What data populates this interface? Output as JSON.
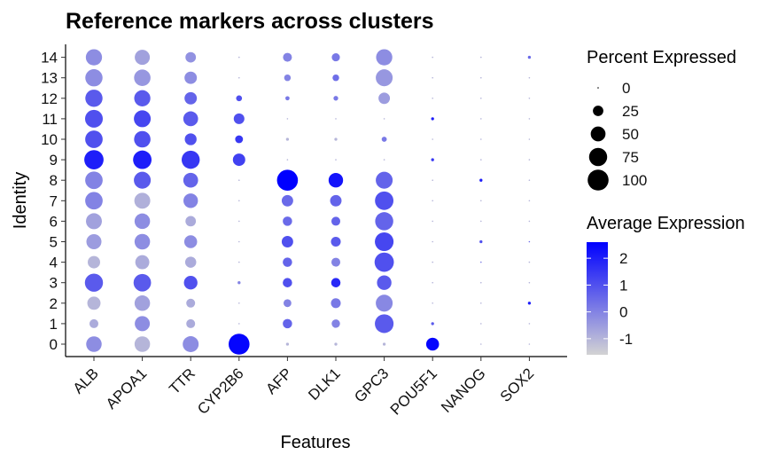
{
  "chart_data": {
    "type": "dotplot",
    "title": "Reference markers across clusters",
    "xlabel": "Features",
    "ylabel": "Identity",
    "features": [
      "ALB",
      "APOA1",
      "TTR",
      "CYP2B6",
      "AFP",
      "DLK1",
      "GPC3",
      "POU5F1",
      "NANOG",
      "SOX2"
    ],
    "identities": [
      "0",
      "1",
      "2",
      "3",
      "4",
      "5",
      "6",
      "7",
      "8",
      "9",
      "10",
      "11",
      "12",
      "13",
      "14"
    ],
    "size_legend": {
      "title": "Percent Expressed",
      "values": [
        0,
        25,
        50,
        75,
        100
      ],
      "labels": [
        "0",
        "25",
        "50",
        "75",
        "100"
      ]
    },
    "color_legend": {
      "title": "Average Expression",
      "ticks": [
        2,
        1,
        0,
        -1
      ],
      "labels": [
        "2",
        "1",
        "0",
        "-1"
      ],
      "range": [
        -1.6,
        2.6
      ],
      "low_color": "#d3d3d3",
      "high_color": "#0000ff"
    },
    "percent_expressed": [
      [
        55,
        55,
        58,
        100,
        2,
        2,
        2,
        38,
        0,
        0
      ],
      [
        18,
        52,
        18,
        0,
        20,
        16,
        80,
        2,
        0,
        0
      ],
      [
        40,
        55,
        18,
        0,
        14,
        22,
        65,
        0,
        0,
        2
      ],
      [
        75,
        70,
        42,
        2,
        20,
        20,
        48,
        0,
        0,
        0
      ],
      [
        35,
        45,
        28,
        0,
        20,
        18,
        85,
        0,
        0,
        0
      ],
      [
        52,
        55,
        38,
        0,
        30,
        22,
        80,
        0,
        2,
        0
      ],
      [
        58,
        55,
        25,
        0,
        20,
        18,
        75,
        0,
        0,
        0
      ],
      [
        70,
        58,
        48,
        0,
        30,
        30,
        78,
        0,
        0,
        0
      ],
      [
        70,
        65,
        50,
        0,
        100,
        48,
        65,
        0,
        2,
        0
      ],
      [
        85,
        78,
        75,
        35,
        0,
        0,
        0,
        2,
        0,
        0
      ],
      [
        70,
        62,
        32,
        14,
        2,
        2,
        6,
        0,
        0,
        0
      ],
      [
        72,
        65,
        50,
        26,
        0,
        0,
        0,
        2,
        0,
        0
      ],
      [
        68,
        60,
        35,
        8,
        4,
        5,
        30,
        0,
        0,
        0
      ],
      [
        68,
        62,
        35,
        0,
        10,
        10,
        65,
        0,
        0,
        0
      ],
      [
        60,
        52,
        25,
        0,
        18,
        15,
        60,
        0,
        0,
        2
      ]
    ],
    "average_expression": [
      [
        -0.2,
        -1.0,
        -0.2,
        2.5,
        -1.0,
        -1.0,
        -1.0,
        2.5,
        -1.0,
        -1.0
      ],
      [
        -0.8,
        -0.2,
        -0.8,
        -1.0,
        0.6,
        0.0,
        0.8,
        0.8,
        -1.0,
        -1.0
      ],
      [
        -1.0,
        -0.6,
        -0.8,
        -1.0,
        0.0,
        0.2,
        -0.1,
        -1.0,
        -1.0,
        2.0
      ],
      [
        0.8,
        0.8,
        1.0,
        0.0,
        1.0,
        1.8,
        0.8,
        -1.0,
        -1.0,
        -1.0
      ],
      [
        -1.0,
        -0.8,
        -0.8,
        -1.0,
        0.6,
        0.0,
        1.0,
        -1.0,
        0.0,
        -1.0
      ],
      [
        -0.5,
        -0.2,
        -0.2,
        -1.0,
        1.0,
        0.8,
        1.2,
        -1.0,
        1.0,
        0.5
      ],
      [
        -0.6,
        -0.2,
        -0.8,
        -1.0,
        0.5,
        0.6,
        0.6,
        -1.0,
        -1.0,
        -1.0
      ],
      [
        0.0,
        -0.9,
        0.0,
        -1.0,
        0.5,
        0.6,
        1.0,
        -1.0,
        -1.0,
        -1.0
      ],
      [
        0.0,
        0.8,
        0.6,
        -1.0,
        2.6,
        2.2,
        0.6,
        -1.0,
        2.0,
        -1.0
      ],
      [
        2.0,
        2.0,
        1.5,
        1.3,
        -1.0,
        -1.0,
        -1.0,
        1.5,
        -1.0,
        -1.0
      ],
      [
        1.0,
        1.0,
        1.0,
        1.5,
        -1.0,
        -1.0,
        0.2,
        -1.0,
        -1.0,
        -1.0
      ],
      [
        1.0,
        1.2,
        0.8,
        1.0,
        -1.0,
        -1.0,
        -1.0,
        2.0,
        -1.0,
        -1.0
      ],
      [
        0.8,
        0.8,
        0.6,
        1.0,
        0.2,
        0.2,
        -0.5,
        -1.0,
        -1.0,
        -1.0
      ],
      [
        -0.2,
        -0.4,
        -0.2,
        -1.0,
        0.0,
        0.4,
        -0.4,
        -1.0,
        -1.0,
        -1.0
      ],
      [
        -0.2,
        -0.6,
        -0.3,
        -1.0,
        0.0,
        0.2,
        -0.2,
        -1.0,
        -1.0,
        0.5
      ]
    ]
  }
}
